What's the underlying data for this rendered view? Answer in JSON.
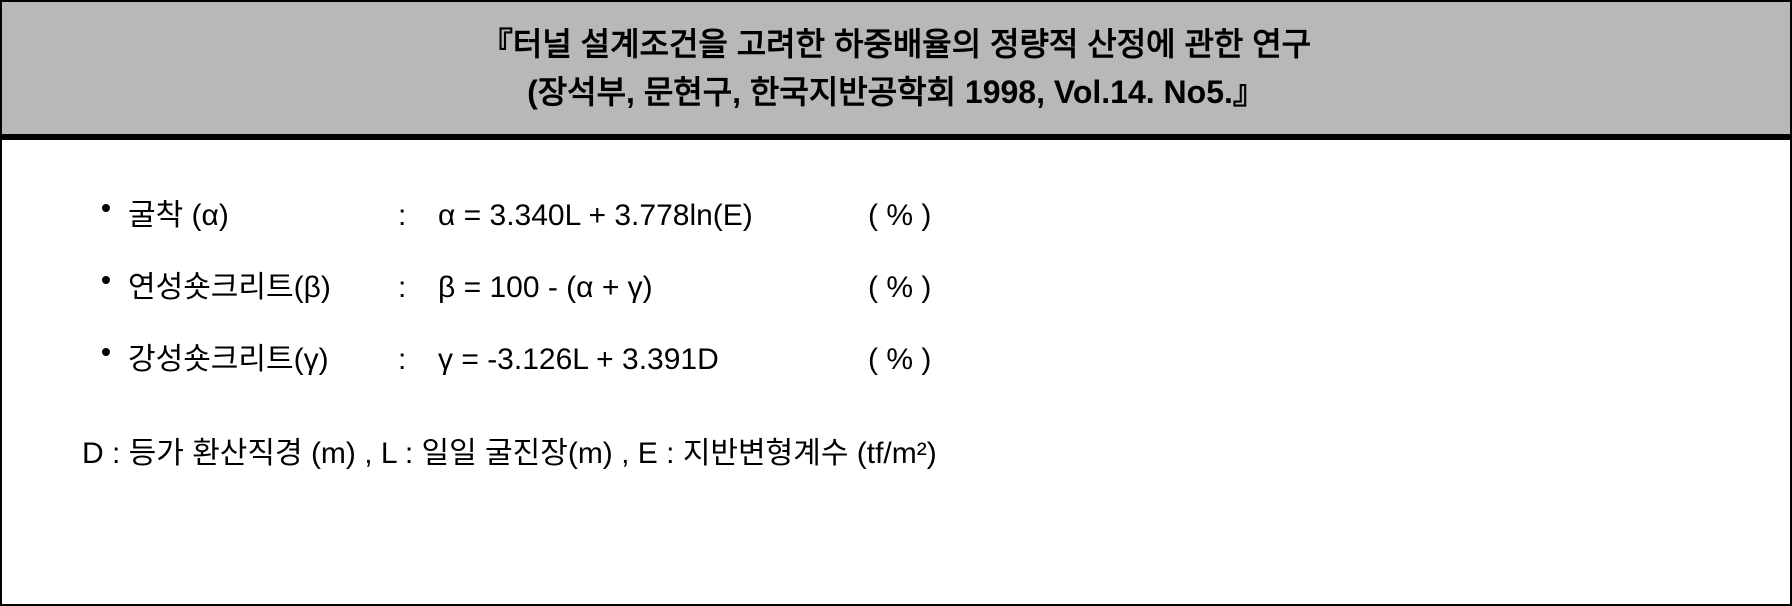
{
  "header": {
    "title_line1": "『터널 설계조건을 고려한 하중배율의 정량적 산정에 관한 연구",
    "title_line2": "(장석부, 문현구, 한국지반공학회 1998, Vol.14. No5.』"
  },
  "formulas": {
    "items": [
      {
        "label": "굴착 (α)",
        "colon": ":",
        "formula": "α = 3.340L + 3.778ln(E)",
        "unit": "( % )"
      },
      {
        "label": "연성숏크리트(β)",
        "colon": ":",
        "formula": "β = 100 - (α + γ)",
        "unit": "( % )"
      },
      {
        "label": "강성숏크리트(γ)",
        "colon": ":",
        "formula": "γ = -3.126L + 3.391D",
        "unit": "( % )"
      }
    ]
  },
  "definitions": {
    "text": "D : 등가 환산직경 (m) , L : 일일 굴진장(m) , E : 지반변형계수 (tf/m²)"
  },
  "styling": {
    "header_bg": "#b8b8b8",
    "header_border": "#000000",
    "header_border_width": 6,
    "title_fontsize": 32,
    "title_fontweight": 700,
    "body_fontsize": 30,
    "text_color": "#000000",
    "container_border": "#000000",
    "bullet_size": 8,
    "col_widths": {
      "label": 270,
      "colon": 40,
      "formula": 430
    }
  }
}
